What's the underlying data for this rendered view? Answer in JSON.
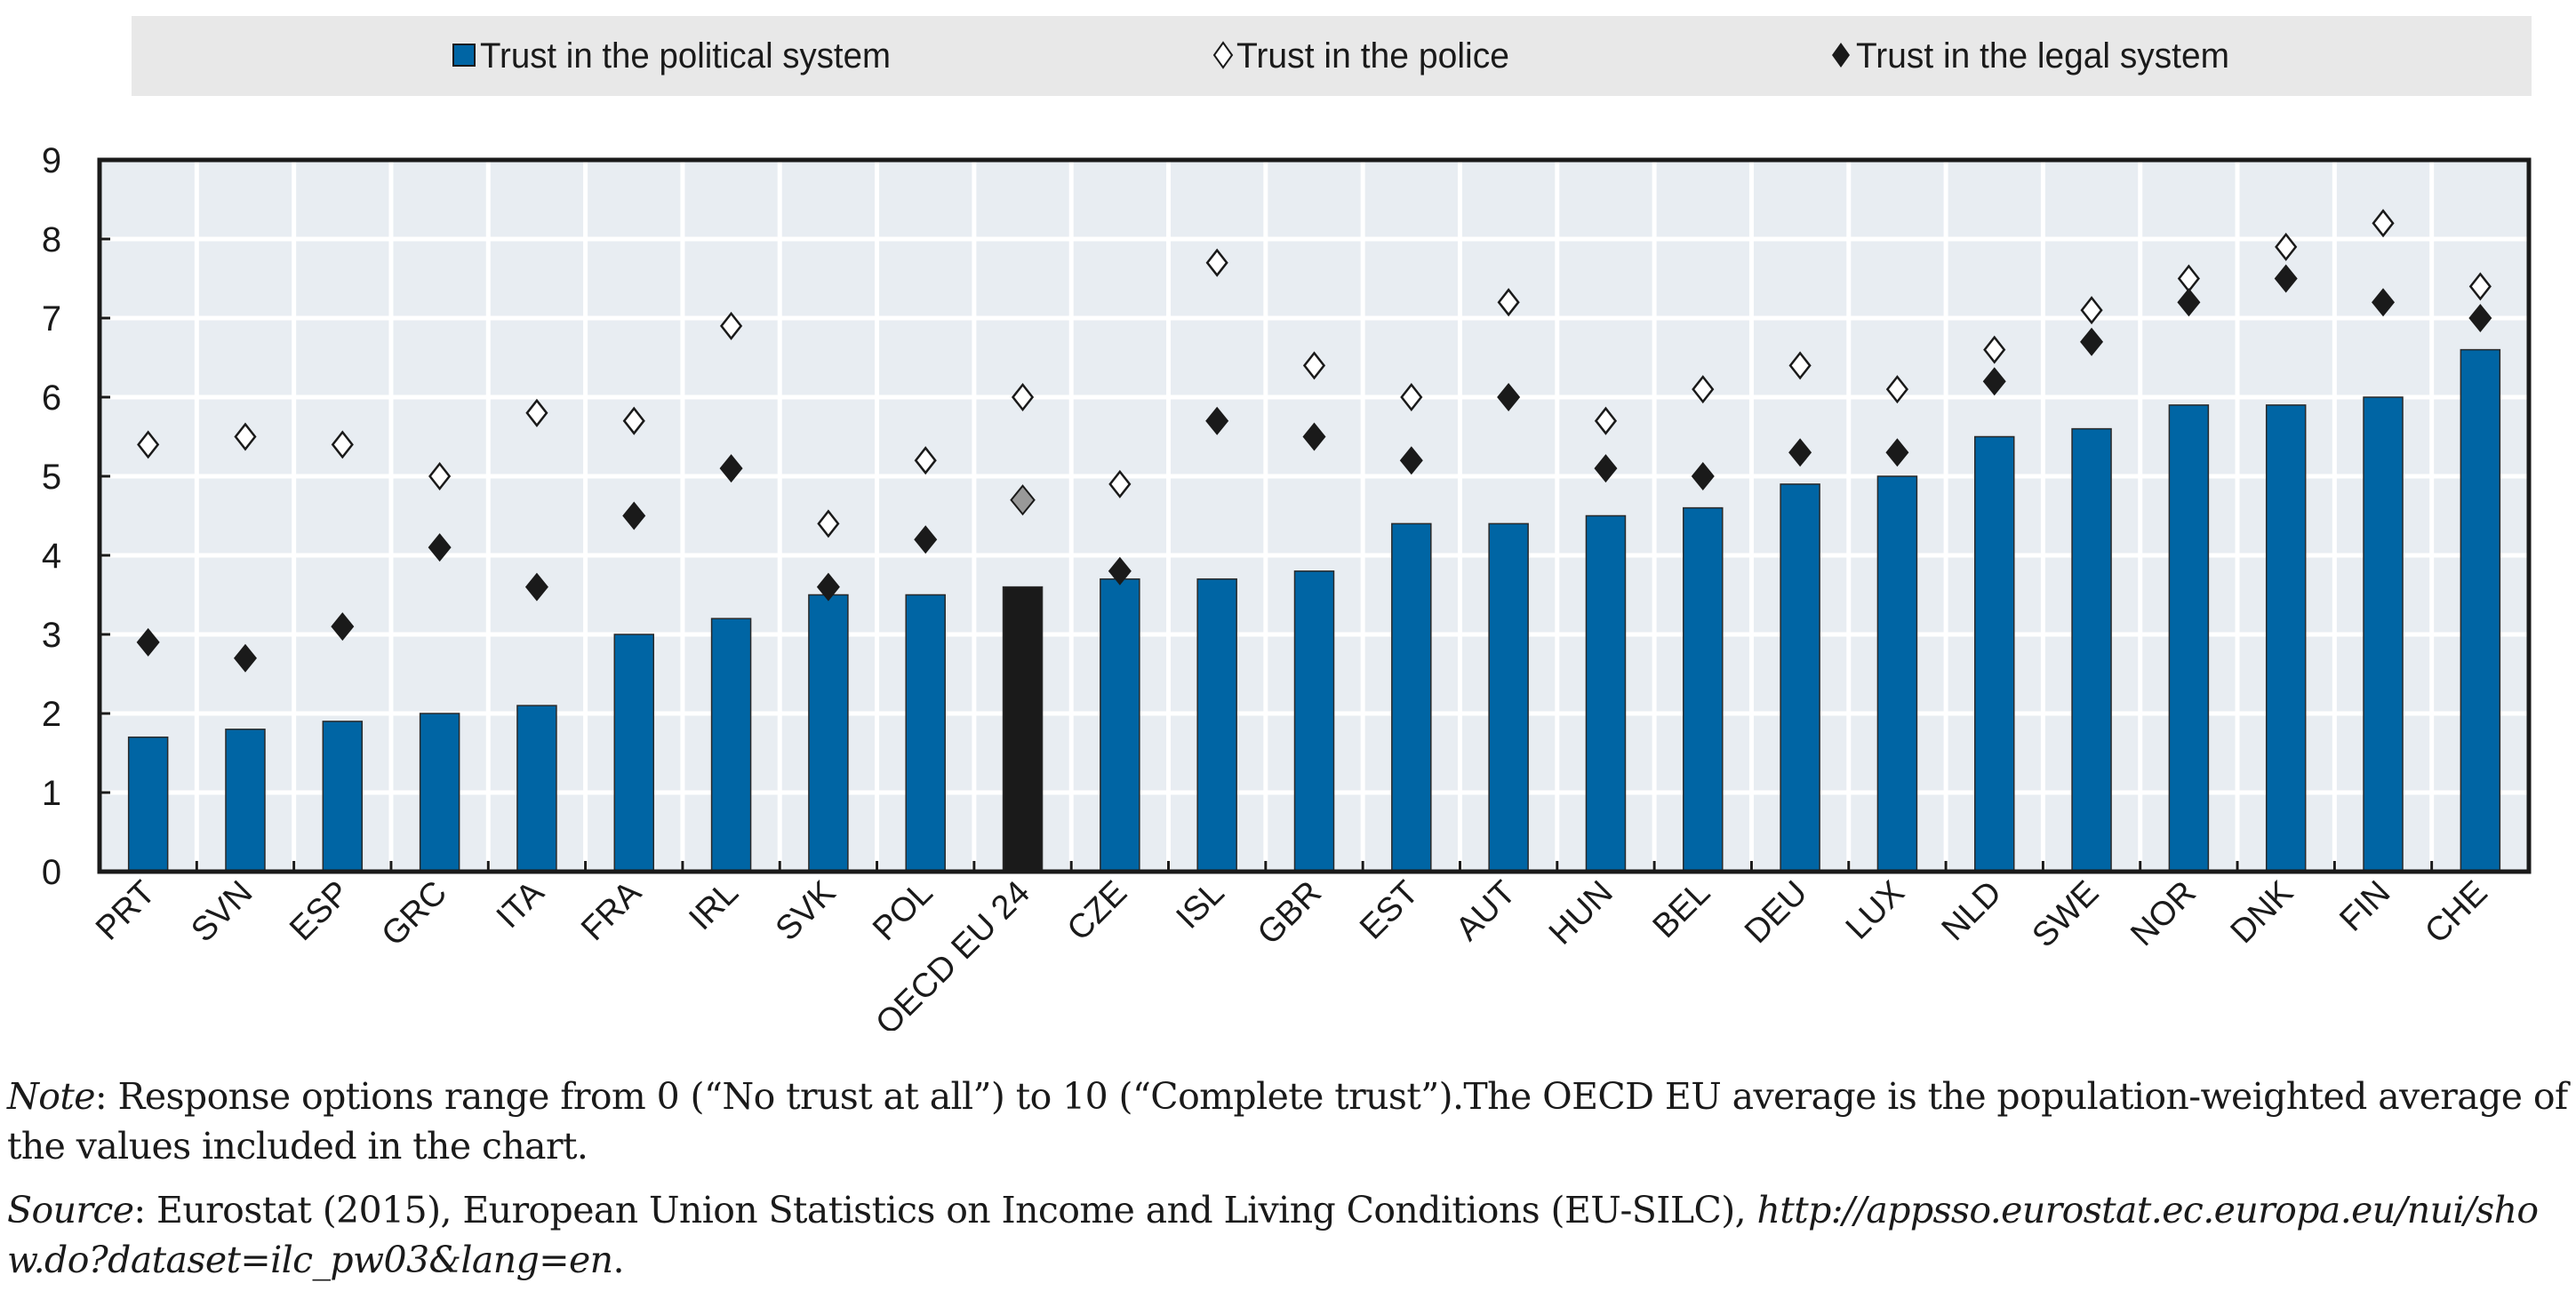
{
  "chart_data": {
    "type": "bar",
    "title": "",
    "xlabel": "",
    "ylabel": "",
    "ylim": [
      0,
      9
    ],
    "yticks": [
      "0",
      "1",
      "2",
      "3",
      "4",
      "5",
      "6",
      "7",
      "8",
      "9"
    ],
    "grid": true,
    "legend_position": "top",
    "categories": [
      "PRT",
      "SVN",
      "ESP",
      "GRC",
      "ITA",
      "FRA",
      "IRL",
      "SVK",
      "POL",
      "OECD EU 24",
      "CZE",
      "ISL",
      "GBR",
      "EST",
      "AUT",
      "HUN",
      "BEL",
      "DEU",
      "LUX",
      "NLD",
      "SWE",
      "NOR",
      "DNK",
      "FIN",
      "CHE"
    ],
    "highlight_category": "OECD EU 24",
    "series": [
      {
        "name": "Trust in the political system",
        "kind": "bar",
        "color": "#0065a4",
        "highlight_color": "#1a1a1a",
        "values": [
          1.7,
          1.8,
          1.9,
          2.0,
          2.1,
          3.0,
          3.2,
          3.5,
          3.5,
          3.6,
          3.7,
          3.7,
          3.8,
          4.4,
          4.4,
          4.5,
          4.6,
          4.9,
          5.0,
          5.5,
          5.6,
          5.9,
          5.9,
          6.0,
          6.6
        ]
      },
      {
        "name": "Trust in the police",
        "kind": "marker",
        "marker": "open-diamond",
        "color": "#ffffff",
        "values": [
          5.4,
          5.5,
          5.4,
          5.0,
          5.8,
          5.7,
          6.9,
          4.4,
          5.2,
          6.0,
          4.9,
          7.7,
          6.4,
          6.0,
          7.2,
          5.7,
          6.1,
          6.4,
          6.1,
          6.6,
          7.1,
          7.5,
          7.9,
          8.2,
          7.4
        ]
      },
      {
        "name": "Trust in the legal system",
        "kind": "marker",
        "marker": "filled-diamond",
        "color": "#1a1a1a",
        "highlight_color": "#999999",
        "values": [
          2.9,
          2.7,
          3.1,
          4.1,
          3.6,
          4.5,
          5.1,
          3.6,
          4.2,
          4.7,
          3.8,
          5.7,
          5.5,
          5.2,
          6.0,
          5.1,
          5.0,
          5.3,
          5.3,
          6.2,
          6.7,
          7.2,
          7.5,
          7.2,
          7.0
        ]
      }
    ]
  },
  "legend": {
    "items": [
      {
        "label": "Trust in the political system",
        "icon": "blue-square-icon"
      },
      {
        "label": "Trust in the police",
        "icon": "open-diamond-icon"
      },
      {
        "label": "Trust in the legal system",
        "icon": "filled-diamond-icon"
      }
    ]
  },
  "colors": {
    "plot_background": "#e8edf2",
    "legend_background": "#e8e8e8",
    "gridline": "#ffffff",
    "axis": "#1a1a1a"
  },
  "notes": {
    "note_label": "Note",
    "note_text": ": Response options range from 0 (“No trust at all”) to 10 (“Complete trust”).The OECD EU average is the population-weighted average of the values included in the chart.",
    "source_label": "Source",
    "source_text": ": Eurostat (2015), European Union Statistics on Income and Living Conditions (EU-SILC), ",
    "source_link": "http://appsso.eurostat.ec.europa.eu/nui/show.do?dataset=ilc_pw03&lang=en",
    "source_end": "."
  }
}
